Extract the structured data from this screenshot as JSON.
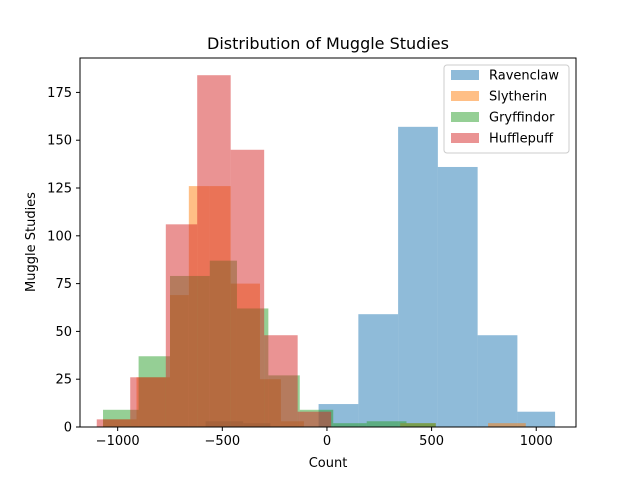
{
  "chart_data": {
    "type": "histogram",
    "title": "Distribution of Muggle Studies",
    "xlabel": "Count",
    "ylabel": "Muggle Studies",
    "xlim": [
      -1180,
      1190
    ],
    "ylim": [
      0,
      193
    ],
    "xticks": [
      -1000,
      -500,
      0,
      500,
      1000
    ],
    "yticks": [
      0,
      25,
      50,
      75,
      100,
      125,
      150,
      175
    ],
    "legend_position": "top-right",
    "grid": false,
    "alpha": 0.5,
    "series": [
      {
        "name": "Ravenclaw",
        "color": "#1f77b4",
        "edges": [
          -40,
          150,
          340,
          530,
          720,
          910,
          1090
        ],
        "counts": [
          12,
          59,
          157,
          136,
          48,
          8
        ],
        "extra_bins": [
          [
            -580,
            -400,
            3
          ],
          [
            -400,
            -270,
            2
          ]
        ]
      },
      {
        "name": "Slytherin",
        "color": "#ff7f0e",
        "edges": [
          -1070,
          -910,
          -750,
          -660,
          -560,
          -460,
          -320,
          -220,
          -110
        ],
        "counts": [
          4,
          26,
          69,
          126,
          126,
          75,
          25,
          3
        ],
        "extra_bins": [
          [
            350,
            520,
            2
          ],
          [
            770,
            950,
            2
          ]
        ]
      },
      {
        "name": "Gryffindor",
        "color": "#2ca02c",
        "edges": [
          -1070,
          -900,
          -750,
          -660,
          -560,
          -430,
          -280,
          -130,
          30
        ],
        "counts": [
          9,
          37,
          79,
          79,
          87,
          62,
          27,
          9
        ],
        "extra_bins": [
          [
            30,
            190,
            2
          ],
          [
            190,
            380,
            3
          ],
          [
            380,
            520,
            2
          ]
        ]
      },
      {
        "name": "Hufflepuff",
        "color": "#d62728",
        "edges": [
          -1100,
          -940,
          -770,
          -620,
          -460,
          -300,
          -140,
          20
        ],
        "counts": [
          4,
          26,
          106,
          184,
          145,
          48,
          8
        ],
        "extra_bins": []
      }
    ]
  }
}
